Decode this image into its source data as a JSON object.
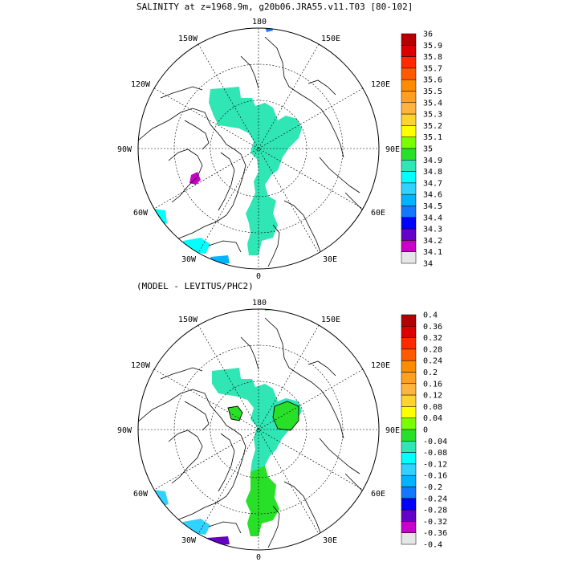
{
  "top_panel": {
    "title": "SALINITY at z=1968.9m, g20b06.JRA55.v11.T03 [80-102]",
    "lon_labels": {
      "n": "180",
      "ne": "150E",
      "nw": "150W",
      "e": "90E",
      "w": "90W",
      "ene": "120E",
      "wnw": "120W",
      "s": "0",
      "se": "30E",
      "sw": "30W",
      "ese": "60E",
      "wsw": "60W"
    },
    "colorbar": {
      "labels": [
        "36",
        "35.9",
        "35.8",
        "35.7",
        "35.6",
        "35.5",
        "35.4",
        "35.3",
        "35.2",
        "35.1",
        "35",
        "34.9",
        "34.8",
        "34.7",
        "34.6",
        "34.5",
        "34.4",
        "34.3",
        "34.2",
        "34.1",
        "34"
      ],
      "colors": [
        "#b40000",
        "#dc0000",
        "#ff2a00",
        "#ff5a00",
        "#ff8c00",
        "#ffa020",
        "#ffb440",
        "#ffd430",
        "#ffff00",
        "#78ff00",
        "#28e028",
        "#30e6b4",
        "#00ffff",
        "#30d2ff",
        "#00b4ff",
        "#1478ff",
        "#0000ff",
        "#6400c8",
        "#c800c8",
        "#e6e6e6",
        "#787878"
      ]
    }
  },
  "bottom_panel": {
    "title": "(MODEL - LEVITUS/PHC2)",
    "lon_labels": {
      "n": "180",
      "ne": "150E",
      "nw": "150W",
      "e": "90E",
      "w": "90W",
      "ene": "120E",
      "wnw": "120W",
      "s": "0",
      "se": "30E",
      "sw": "30W",
      "ese": "60E",
      "wsw": "60W"
    },
    "colorbar": {
      "labels": [
        "0.4",
        "0.36",
        "0.32",
        "0.28",
        "0.24",
        "0.2",
        "0.16",
        "0.12",
        "0.08",
        "0.04",
        "0",
        "-0.04",
        "-0.08",
        "-0.12",
        "-0.16",
        "-0.2",
        "-0.24",
        "-0.28",
        "-0.32",
        "-0.36",
        "-0.4"
      ],
      "colors": [
        "#b40000",
        "#dc0000",
        "#ff2a00",
        "#ff5a00",
        "#ff8c00",
        "#ffa020",
        "#ffb440",
        "#ffd430",
        "#ffff00",
        "#78ff00",
        "#28e028",
        "#30e6b4",
        "#00ffff",
        "#30d2ff",
        "#00b4ff",
        "#1478ff",
        "#0000ff",
        "#6400c8",
        "#c800c8",
        "#e6e6e6",
        "#787878"
      ]
    }
  },
  "field_colors": {
    "salinity_35": "#30e6b4",
    "salinity_34_9": "#00ffff",
    "salinity_34_7": "#00b4ff",
    "salinity_34_6": "#1478ff",
    "salinity_34_3": "#c800c8",
    "diff_neg_0_04": "#30e6b4",
    "diff_0": "#28e028",
    "diff_neg_0_12": "#30d2ff",
    "diff_neg_0_28": "#6400c8"
  }
}
